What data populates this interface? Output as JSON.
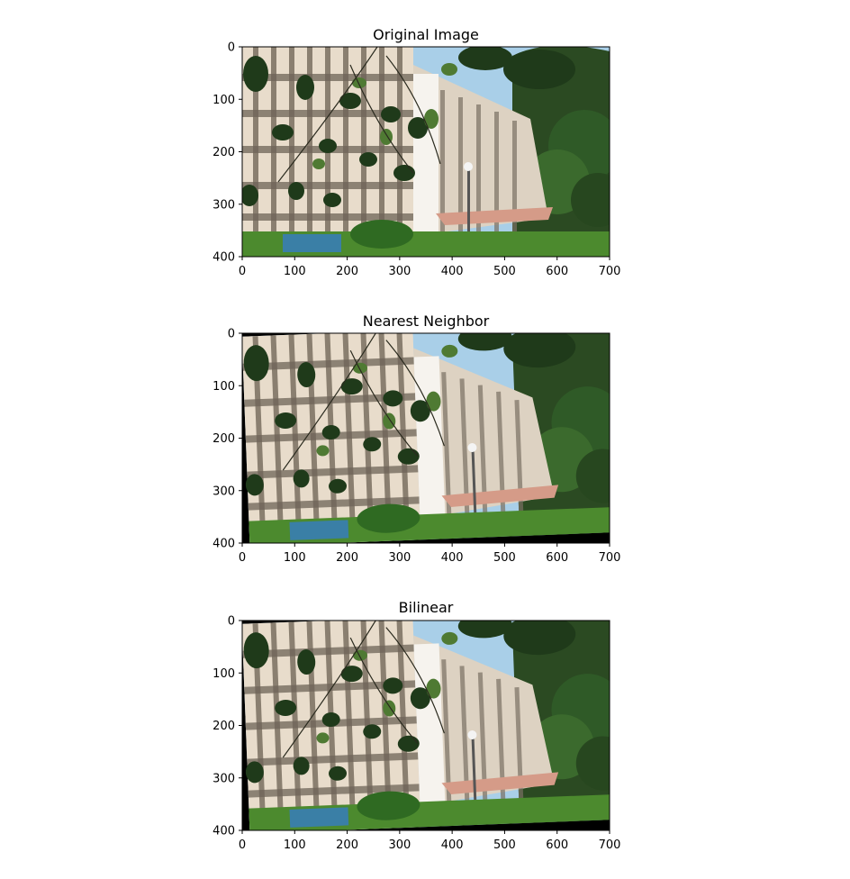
{
  "chart_data": [
    {
      "type": "image",
      "title": "Original Image",
      "xlim": [
        0,
        700
      ],
      "ylim": [
        400,
        0
      ],
      "xticks": [
        0,
        100,
        200,
        300,
        400,
        500,
        600,
        700
      ],
      "yticks": [
        0,
        100,
        200,
        300,
        400
      ],
      "transform": "none"
    },
    {
      "type": "image",
      "title": "Nearest Neighbor",
      "xlim": [
        0,
        700
      ],
      "ylim": [
        400,
        0
      ],
      "xticks": [
        0,
        100,
        200,
        300,
        400,
        500,
        600,
        700
      ],
      "yticks": [
        0,
        100,
        200,
        300,
        400
      ],
      "transform": "rotated"
    },
    {
      "type": "image",
      "title": "Bilinear",
      "xlim": [
        0,
        700
      ],
      "ylim": [
        400,
        0
      ],
      "xticks": [
        0,
        100,
        200,
        300,
        400,
        500,
        600,
        700
      ],
      "yticks": [
        0,
        100,
        200,
        300,
        400
      ],
      "transform": "rotated"
    }
  ],
  "colors": {
    "sky": "#a9cfe8",
    "building": "#e8dccb",
    "building_shadow": "#8a7f70",
    "foliage": "#1f3a1a",
    "leaf": "#3f6b2a",
    "grass": "#4c8a2e",
    "canopy": "#d59b88",
    "fill_black": "#000000"
  }
}
